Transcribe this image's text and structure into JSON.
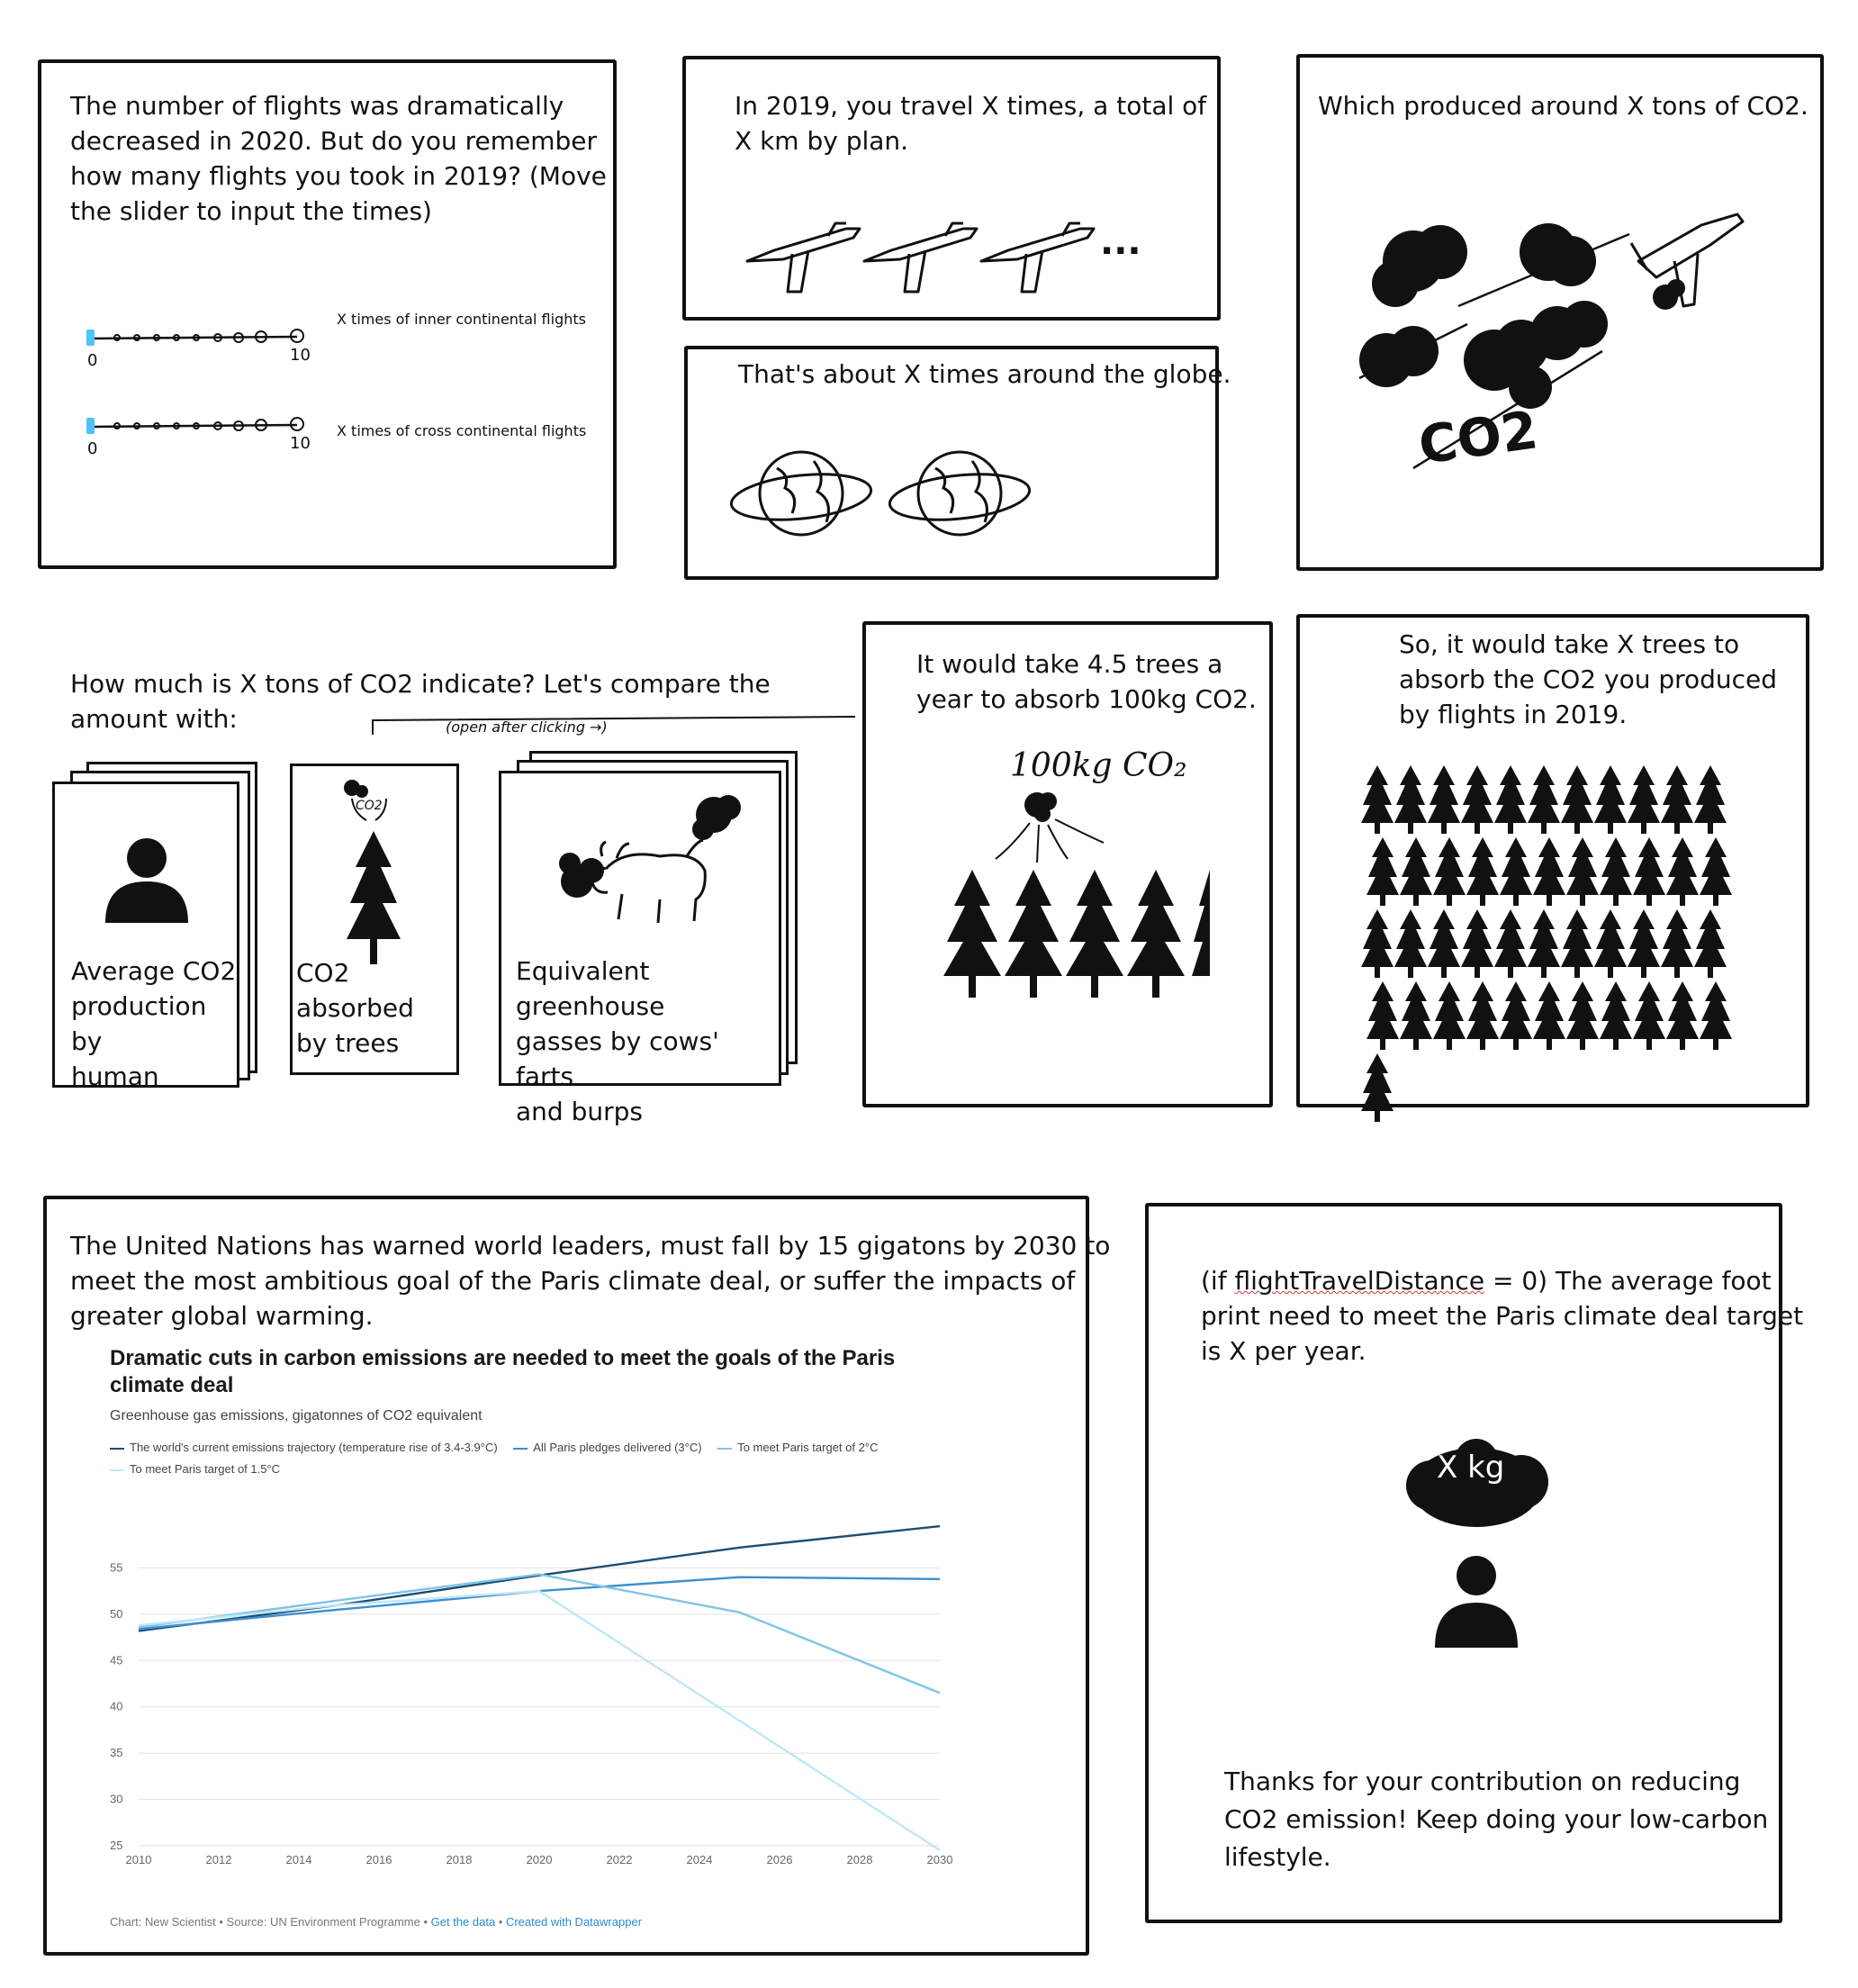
{
  "panel1": {
    "text": "The number of flights was dramatically\ndecreased in 2020. But do you remember\nhow many flights you took in 2019? (Move\nthe slider to input the times)",
    "slider1": {
      "min_label": "0",
      "max_label": "10",
      "label": "X times of inner continental flights",
      "value": 0
    },
    "slider2": {
      "min_label": "0",
      "max_label": "10",
      "label": "X times of cross continental flights",
      "value": 0
    },
    "accent": "#4fc3f7"
  },
  "panel2": {
    "text": "In 2019, you travel X times, a total of\nX km by plan.",
    "ellipsis": "..."
  },
  "panel3": {
    "text": "That's about X times around  the globe."
  },
  "panel4": {
    "text": "Which produced around X tons of CO2.",
    "co2_label": "CO2"
  },
  "panel5": {
    "text": "How much is X tons of CO2 indicate? Let's compare the\namount with:",
    "note": "(open after clicking →)",
    "co2_small": "CO2",
    "cards": [
      {
        "label": "Average CO2\nproduction by\nhuman"
      },
      {
        "label": "CO2 absorbed\nby trees"
      },
      {
        "label": "Equivalent greenhouse\ngasses by cows' farts\nand burps"
      }
    ]
  },
  "panel6": {
    "text": "It would take 4.5 trees a\nyear to absorb 100kg CO2.",
    "handwritten": "100kg CO₂"
  },
  "panel7": {
    "text": "So, it would take X trees to\nabsorb the CO2 you produced\nby flights in 2019.",
    "tree_count": 45
  },
  "panel8": {
    "text": "The United Nations has warned world leaders, must fall by 15 gigatons by 2030 to\nmeet the most ambitious goal of the Paris climate deal,   or suffer the impacts of\ngreater global warming."
  },
  "chart_data": {
    "type": "line",
    "title": "Dramatic cuts in carbon emissions are needed to meet the goals of the Paris climate deal",
    "subtitle": "Greenhouse gas emissions, gigatonnes of CO2 equivalent",
    "x_ticks": [
      "2010",
      "2012",
      "2014",
      "2016",
      "2018",
      "2020",
      "2022",
      "2024",
      "2026",
      "2028",
      "2030"
    ],
    "y_ticks": [
      "25",
      "30",
      "35",
      "40",
      "45",
      "50",
      "55"
    ],
    "ylim": [
      25,
      60
    ],
    "xlim": [
      2010,
      2030
    ],
    "grid": true,
    "series": [
      {
        "name": "The world's current emissions trajectory (temperature rise of 3.4-3.9°C)",
        "color": "#1d4e74",
        "points": [
          [
            2010,
            48.2
          ],
          [
            2015,
            51.0
          ],
          [
            2020,
            54.2
          ],
          [
            2025,
            57.2
          ],
          [
            2030,
            59.5
          ]
        ]
      },
      {
        "name": "All Paris pledges delivered (3°C)",
        "color": "#3b8fcf",
        "points": [
          [
            2010,
            48.4
          ],
          [
            2015,
            50.5
          ],
          [
            2020,
            52.5
          ],
          [
            2025,
            54.0
          ],
          [
            2030,
            53.8
          ]
        ]
      },
      {
        "name": "To meet Paris target of 2°C",
        "color": "#7fc4e8",
        "points": [
          [
            2010,
            48.6
          ],
          [
            2015,
            51.5
          ],
          [
            2020,
            54.3
          ],
          [
            2025,
            50.2
          ],
          [
            2030,
            41.5
          ]
        ]
      },
      {
        "name": "To meet Paris target of 1.5°C",
        "color": "#bfe7f7",
        "points": [
          [
            2010,
            48.8
          ],
          [
            2015,
            51.0
          ],
          [
            2020,
            52.5
          ],
          [
            2025,
            38.5
          ],
          [
            2030,
            24.5
          ]
        ]
      }
    ],
    "footer_prefix": "Chart: New Scientist • Source: UN Environment Programme • ",
    "footer_link1": "Get the data",
    "footer_sep": " • ",
    "footer_link2": "Created with Datawrapper"
  },
  "panel9": {
    "text_prefix": "(if ",
    "text_var": "flightTravelDistance",
    "text_rest": " = 0) The average foot\nprint need to meet the Paris climate deal target\nis X per year.",
    "cloud_label": "X kg",
    "thanks": "Thanks for your contribution on reducing\nCO2 emission! Keep doing your low-carbon\nlifestyle."
  }
}
